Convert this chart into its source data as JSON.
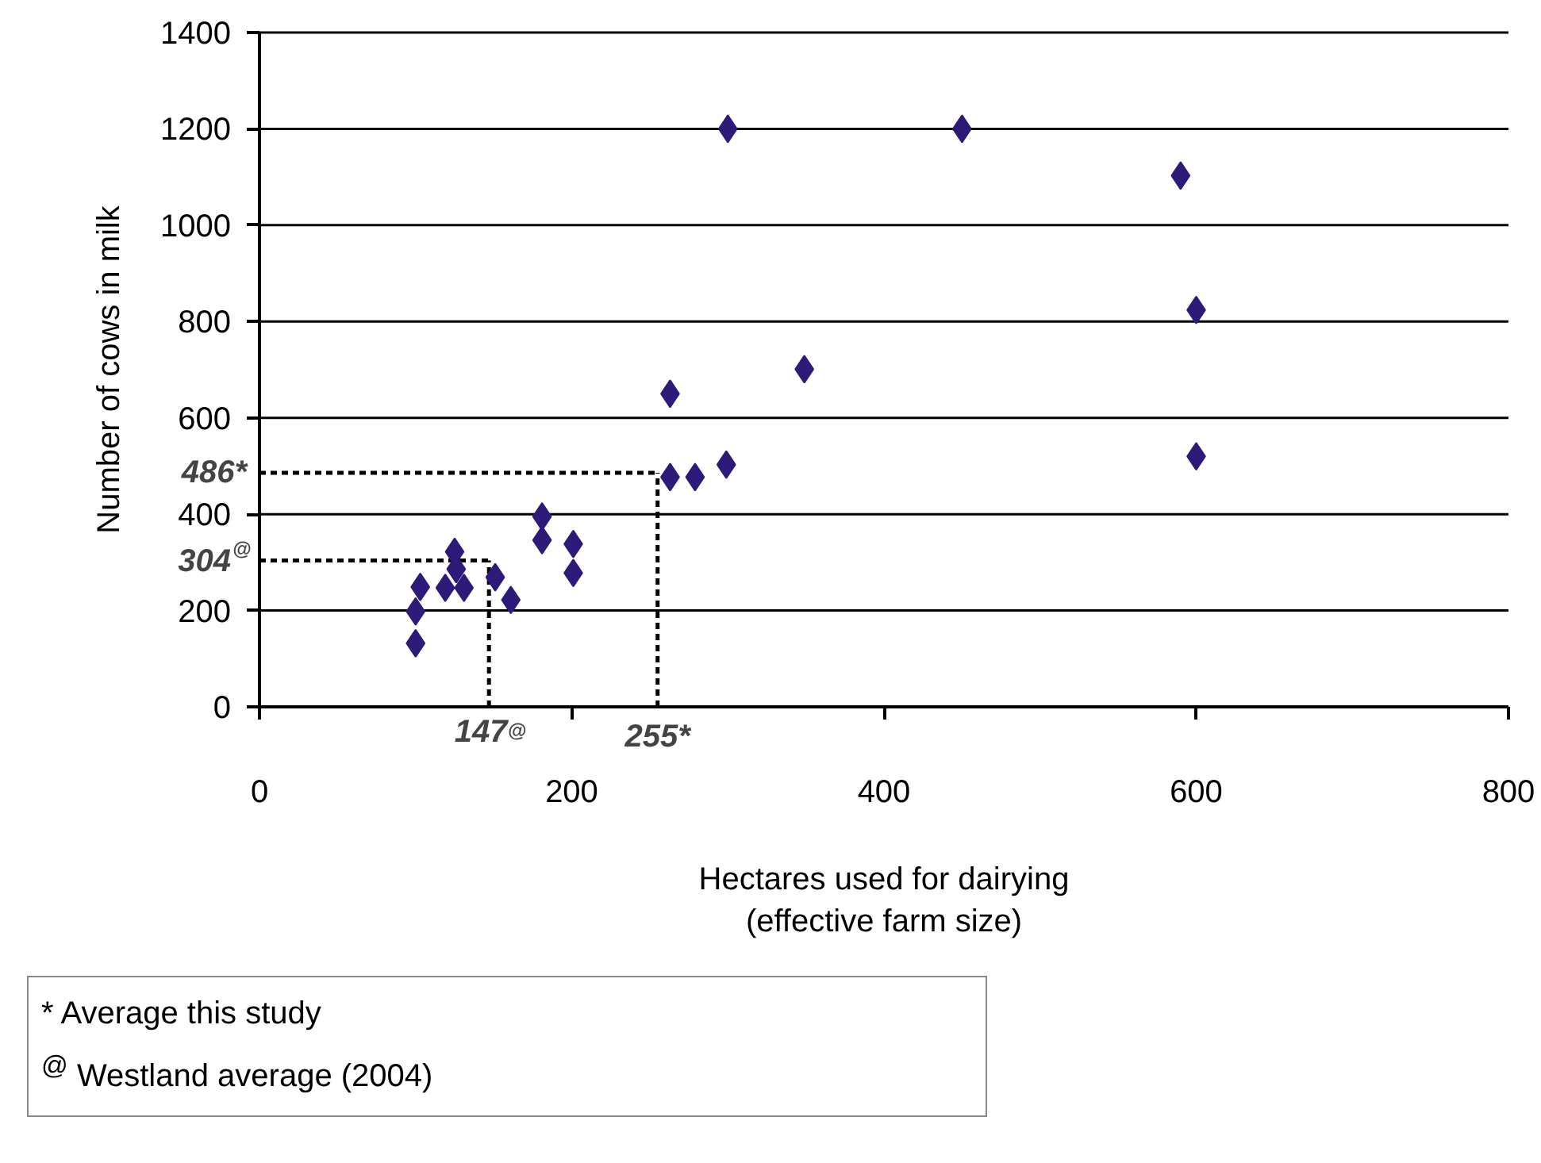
{
  "chart_data": {
    "type": "scatter",
    "xlabel": "Hectares used for dairying\n(effective farm size)",
    "ylabel": "Number of cows in milk",
    "x": [
      100,
      100,
      103,
      119,
      125,
      126,
      131,
      151,
      161,
      181,
      181,
      201,
      201,
      263,
      279,
      299,
      263,
      349,
      300,
      450,
      590,
      600,
      600
    ],
    "series": [
      {
        "color": "#2e1a78",
        "values": [
          132,
          198,
          249,
          247,
          322,
          286,
          247,
          269,
          222,
          395,
          346,
          338,
          278,
          477,
          477,
          503,
          650,
          701,
          1200,
          1200,
          1103,
          824,
          520
        ]
      }
    ],
    "marker": "diamond",
    "xlim": [
      0,
      800
    ],
    "xticks": [
      0,
      200,
      400,
      600,
      800
    ],
    "ylim": [
      0,
      1400
    ],
    "yticks": [
      0,
      200,
      400,
      600,
      800,
      1000,
      1200,
      1400
    ],
    "grid": "y",
    "ref_lines": [
      {
        "axis": "y",
        "value": 486,
        "label": "486*",
        "line_style": "dashed",
        "color": "#000000"
      },
      {
        "axis": "x",
        "value": 255,
        "label": "255*",
        "line_style": "dashed",
        "color": "#000000"
      },
      {
        "axis": "y",
        "value": 304,
        "label": "304$^{@}$",
        "line_style": "dashed",
        "color": "#000000"
      },
      {
        "axis": "x",
        "value": 147,
        "label": "147$^{@}$",
        "line_style": "dashed",
        "color": "#000000"
      }
    ],
    "annotations": [
      "* Average this study",
      "$^{@}$ Westland average (2004)"
    ]
  }
}
